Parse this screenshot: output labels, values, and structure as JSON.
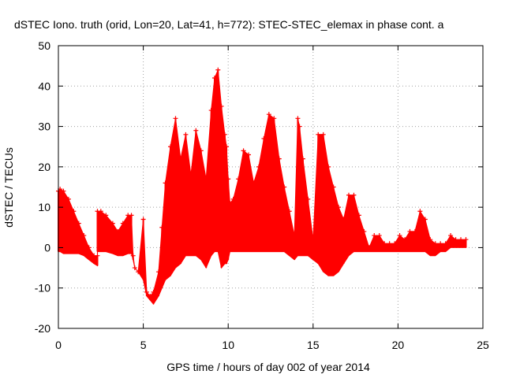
{
  "chart_data": {
    "type": "area",
    "title": "dSTEC Iono. truth (orid, Lon=20, Lat=41, h=772): STEC-STEC_elemax in phase cont. a",
    "xlabel": "GPS time / hours of day 002 of year 2014",
    "ylabel": "dSTEC  / TECUs",
    "xlim": [
      0,
      25
    ],
    "ylim": [
      -20,
      50
    ],
    "x_ticks": [
      0,
      5,
      10,
      15,
      20,
      25
    ],
    "y_ticks": [
      -20,
      -10,
      0,
      10,
      20,
      30,
      40,
      50
    ],
    "grid": true,
    "legend": "none",
    "colors": {
      "series": "#ff0000",
      "grid": "#a0a0a0",
      "axis": "#000000"
    },
    "series": [
      {
        "marker": "plus",
        "x": [
          0.0,
          0.1,
          0.3,
          0.6,
          0.9,
          1.2,
          1.5,
          1.8,
          2.1,
          2.3,
          2.3,
          2.5,
          2.8,
          3.2,
          3.5,
          3.8,
          4.1,
          4.3,
          4.4,
          4.5,
          4.7,
          5.0,
          5.2,
          5.4,
          5.6,
          5.9,
          6.1,
          6.3,
          6.6,
          6.9,
          7.2,
          7.5,
          7.8,
          8.1,
          8.4,
          8.7,
          9.0,
          9.2,
          9.4,
          9.6,
          9.8,
          9.9,
          10.0,
          10.1,
          10.3,
          10.6,
          10.9,
          11.2,
          11.5,
          11.8,
          12.1,
          12.4,
          12.7,
          13.0,
          13.3,
          13.6,
          13.9,
          14.1,
          14.2,
          14.4,
          14.7,
          15.0,
          15.3,
          15.6,
          15.9,
          16.2,
          16.5,
          16.8,
          17.1,
          17.4,
          17.7,
          18.0,
          18.3,
          18.6,
          18.9,
          19.2,
          19.5,
          19.8,
          20.1,
          20.4,
          20.7,
          21.0,
          21.3,
          21.6,
          21.9,
          22.2,
          22.5,
          22.8,
          23.1,
          23.4,
          23.7,
          24.0
        ],
        "upper": [
          14,
          14.5,
          14,
          12,
          9,
          6,
          3,
          0,
          -2,
          -2,
          9,
          9,
          8,
          6,
          4,
          6,
          8,
          8,
          -2,
          -5,
          -6,
          7,
          -11,
          -12,
          -11,
          -6,
          5,
          16,
          25,
          32,
          22,
          28,
          18,
          29,
          24,
          17,
          34,
          42,
          44,
          35,
          28,
          25,
          17,
          11,
          12,
          17,
          24,
          23,
          16,
          20,
          27,
          33,
          32,
          22,
          15,
          9,
          3,
          32,
          30,
          22,
          12,
          2,
          28,
          28,
          20,
          15,
          10,
          7,
          13,
          13,
          8,
          4,
          0,
          3,
          3,
          1,
          1,
          1,
          3,
          2,
          4,
          4,
          9,
          7,
          2,
          1,
          1,
          1,
          3,
          2,
          2,
          2
        ],
        "lower": [
          -1,
          -1,
          -1.5,
          -1.5,
          -1.5,
          -1.5,
          -2,
          -3,
          -4,
          -4.5,
          -1,
          -1,
          -1,
          -1.5,
          -2,
          -2,
          -1.5,
          -1.5,
          -3,
          -5,
          -6,
          -8,
          -12,
          -13,
          -14,
          -12,
          -10,
          -8,
          -7,
          -5,
          -4,
          -2,
          -2,
          -2,
          -3,
          -5,
          -2,
          -1,
          -1,
          -5,
          -4,
          -4,
          -3,
          -1,
          -1,
          -1,
          -1,
          -1,
          -1,
          -1,
          -1,
          -1,
          -1,
          -1,
          -1,
          -2,
          -3,
          -2,
          -2,
          -2,
          -2,
          -3,
          -4,
          -6,
          -7,
          -7,
          -6,
          -4,
          -2,
          -1,
          -1,
          -1,
          -1,
          -1,
          -1,
          -1,
          -1,
          -1,
          -1,
          -1,
          -1,
          -1,
          -1,
          -1,
          -2,
          -2,
          -1,
          -1,
          0,
          0,
          0,
          0
        ]
      }
    ]
  }
}
